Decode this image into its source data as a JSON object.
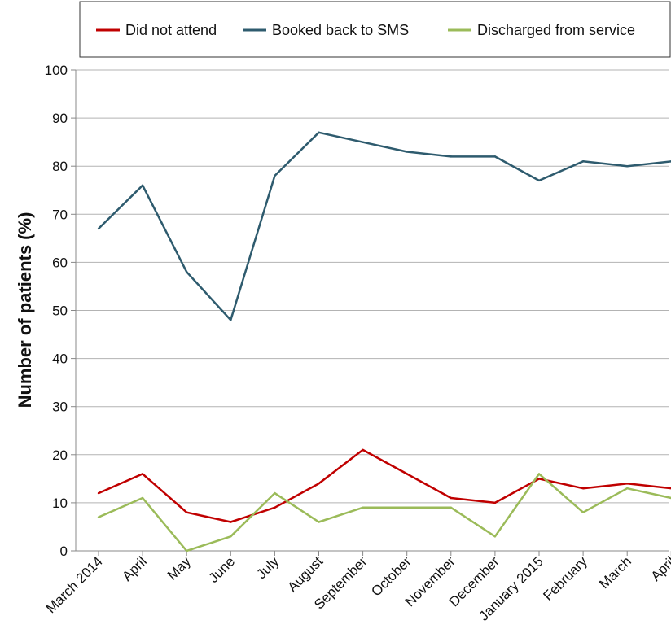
{
  "chart_data": {
    "type": "line",
    "title": "",
    "xlabel": "",
    "ylabel": "Number of patients (%)",
    "ylim": [
      0,
      100
    ],
    "yticks": [
      0,
      10,
      20,
      30,
      40,
      50,
      60,
      70,
      80,
      90,
      100
    ],
    "grid": true,
    "legend_position": "top",
    "categories": [
      "March 2014",
      "April",
      "May",
      "June",
      "July",
      "August",
      "September",
      "October",
      "November",
      "December",
      "January 2015",
      "February",
      "March",
      "April"
    ],
    "series": [
      {
        "name": "Did not attend",
        "color": "#c00000",
        "values": [
          12,
          16,
          8,
          6,
          9,
          14,
          21,
          16,
          11,
          10,
          15,
          13,
          14,
          13
        ]
      },
      {
        "name": "Booked back to SMS",
        "color": "#2e5b6e",
        "values": [
          67,
          76,
          58,
          48,
          78,
          87,
          85,
          83,
          82,
          82,
          77,
          81,
          80,
          81
        ]
      },
      {
        "name": "Discharged from service",
        "color": "#9bbb59",
        "values": [
          7,
          11,
          0,
          3,
          12,
          6,
          9,
          9,
          9,
          3,
          16,
          8,
          13,
          11
        ]
      }
    ]
  }
}
